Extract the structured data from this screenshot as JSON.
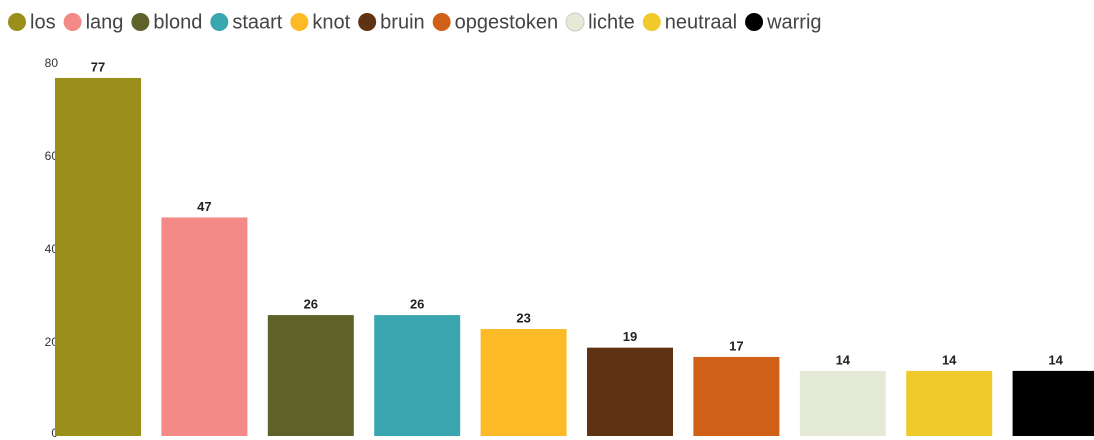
{
  "chart_data": {
    "type": "bar",
    "categories": [
      "los",
      "lang",
      "blond",
      "staart",
      "knot",
      "bruin",
      "opgestoken",
      "lichte",
      "neutraal",
      "warrig"
    ],
    "values": [
      77,
      47,
      26,
      26,
      23,
      19,
      17,
      14,
      14,
      14
    ],
    "colors": [
      "#9a8f1b",
      "#f48a87",
      "#5f6228",
      "#3aa6b0",
      "#fbba26",
      "#5f3214",
      "#d05f18",
      "#e4ead6",
      "#f0c92b",
      "#000000"
    ],
    "ylim": [
      0,
      80
    ],
    "yticks": [
      0,
      20,
      40,
      60,
      80
    ],
    "grid": false,
    "legend": "top"
  }
}
